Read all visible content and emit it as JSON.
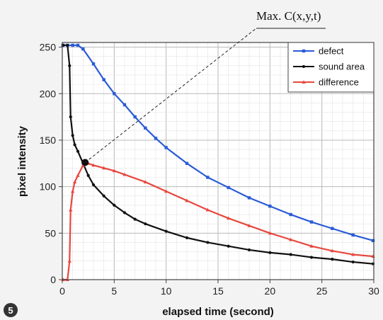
{
  "figure_number": "5",
  "chart_data": {
    "type": "line",
    "title": "",
    "xlabel": "elapsed time (second)",
    "ylabel": "pixel intensity",
    "xlim": [
      0,
      30
    ],
    "ylim": [
      0,
      255
    ],
    "xticks": [
      0,
      5,
      10,
      15,
      20,
      25,
      30
    ],
    "yticks": [
      0,
      50,
      100,
      150,
      200,
      250
    ],
    "grid": true,
    "legend_position": "top-right",
    "annotation": {
      "text": "Max. C(x,y,t)",
      "point": [
        2.2,
        126
      ]
    },
    "series": [
      {
        "name": "defect",
        "color": "#2a5bd7",
        "marker": "square",
        "x": [
          -0.5,
          0,
          0.5,
          1,
          1.5,
          2,
          3,
          4,
          5,
          6,
          7,
          8,
          9,
          10,
          12,
          14,
          16,
          18,
          20,
          22,
          24,
          26,
          28,
          30
        ],
        "y": [
          252,
          252,
          252,
          252,
          252,
          248,
          232,
          215,
          200,
          188,
          175,
          163,
          152,
          142,
          125,
          110,
          99,
          88,
          79,
          70,
          62,
          55,
          48,
          42
        ]
      },
      {
        "name": "sound area",
        "color": "#111111",
        "marker": "circle",
        "x": [
          -0.5,
          0,
          0.5,
          0.7,
          0.8,
          1,
          1.2,
          1.5,
          2,
          2.5,
          3,
          4,
          5,
          6,
          7,
          8,
          10,
          12,
          14,
          16,
          18,
          20,
          22,
          24,
          26,
          28,
          30
        ],
        "y": [
          252,
          252,
          252,
          230,
          175,
          155,
          145,
          138,
          125,
          112,
          102,
          90,
          80,
          72,
          65,
          60,
          52,
          45,
          40,
          36,
          32,
          29,
          27,
          24,
          22,
          19,
          17
        ]
      },
      {
        "name": "difference",
        "color": "#e8473e",
        "marker": "triangle",
        "x": [
          -0.5,
          0,
          0.5,
          0.7,
          0.8,
          1,
          1.2,
          1.5,
          2,
          2.5,
          3,
          4,
          5,
          6,
          8,
          10,
          12,
          14,
          16,
          18,
          20,
          22,
          24,
          26,
          28,
          30
        ],
        "y": [
          0,
          0,
          0,
          20,
          75,
          95,
          105,
          112,
          123,
          125,
          123,
          120,
          117,
          113,
          105,
          95,
          85,
          75,
          66,
          58,
          50,
          43,
          36,
          31,
          27,
          25
        ]
      }
    ]
  }
}
